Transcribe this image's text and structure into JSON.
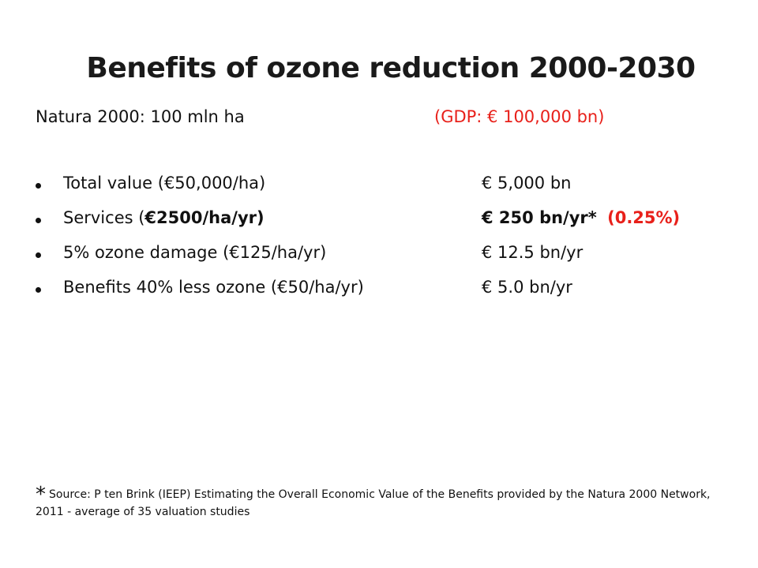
{
  "title": "Benefits of ozone reduction 2000-2030",
  "subtitle": {
    "left": "Natura 2000:  100 mln ha",
    "right": "(GDP: € 100,000 bn)",
    "right_color": "#e8201a"
  },
  "bullets": [
    {
      "label": "Total value (€50,000/ha)",
      "value": "€  5,000 bn"
    },
    {
      "label_prefix": "Services (",
      "label_bold": "€2500/ha/yr)",
      "value_bold": "€  250 bn/yr*",
      "value_red": "(0.25%)"
    },
    {
      "label": "5% ozone damage (€125/ha/yr)",
      "value": "€ 12.5 bn/yr"
    },
    {
      "label": "Benefits 40% less ozone (€50/ha/yr)",
      "value": "€  5.0 bn/yr"
    }
  ],
  "footnote": {
    "mark": "*",
    "text": "Source: P ten Brink (IEEP) Estimating the Overall Economic Value of the Benefits provided by the Natura 2000 Network, 2011  - average of 35 valuation studies"
  },
  "colors": {
    "accent_red": "#e8201a",
    "text": "#111111",
    "background": "#ffffff"
  },
  "icons": {
    "bullet": "bullet-dot-icon"
  }
}
